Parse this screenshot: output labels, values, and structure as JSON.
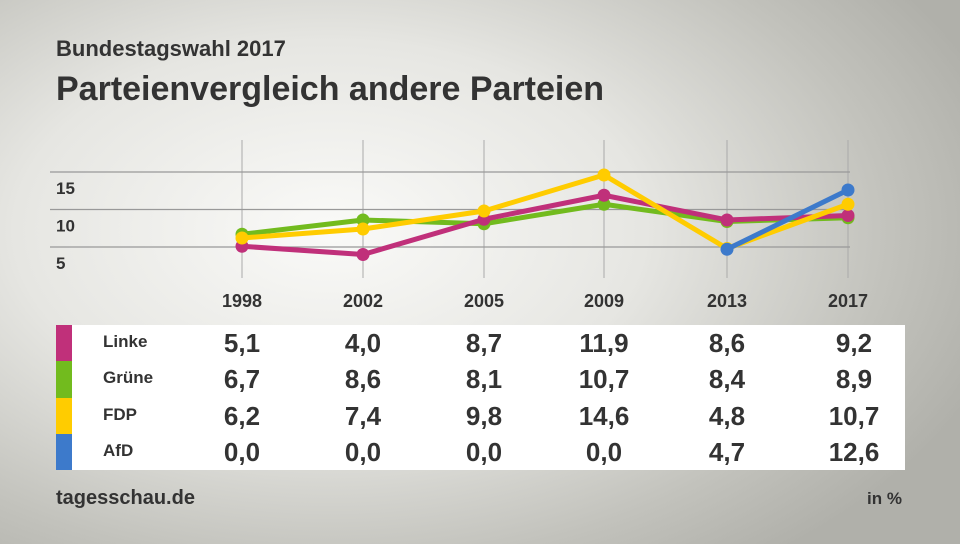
{
  "header": {
    "subtitle": "Bundestagswahl 2017",
    "title": "Parteienvergleich andere Parteien"
  },
  "footer": {
    "source": "tagesschau.de",
    "unit": "in %"
  },
  "chart_data": {
    "type": "line",
    "categories": [
      "1998",
      "2002",
      "2005",
      "2009",
      "2013",
      "2017"
    ],
    "y_ticks": [
      "5",
      "10",
      "15"
    ],
    "grid": true,
    "series": [
      {
        "name": "Linke",
        "color": "#c0307a",
        "values": [
          5.1,
          4.0,
          8.7,
          11.9,
          8.6,
          9.2
        ],
        "labels": [
          "5,1",
          "4,0",
          "8,7",
          "11,9",
          "8,6",
          "9,2"
        ],
        "plotted": [
          true,
          true,
          true,
          true,
          true,
          true
        ]
      },
      {
        "name": "Grüne",
        "color": "#72bb1e",
        "values": [
          6.7,
          8.6,
          8.1,
          10.7,
          8.4,
          8.9
        ],
        "labels": [
          "6,7",
          "8,6",
          "8,1",
          "10,7",
          "8,4",
          "8,9"
        ],
        "plotted": [
          true,
          true,
          true,
          true,
          true,
          true
        ]
      },
      {
        "name": "FDP",
        "color": "#ffcc00",
        "values": [
          6.2,
          7.4,
          9.8,
          14.6,
          4.8,
          10.7
        ],
        "labels": [
          "6,2",
          "7,4",
          "9,8",
          "14,6",
          "4,8",
          "10,7"
        ],
        "plotted": [
          true,
          true,
          true,
          true,
          true,
          true
        ]
      },
      {
        "name": "AfD",
        "color": "#3d7acb",
        "values": [
          0.0,
          0.0,
          0.0,
          0.0,
          4.7,
          12.6
        ],
        "labels": [
          "0,0",
          "0,0",
          "0,0",
          "0,0",
          "4,7",
          "12,6"
        ],
        "plotted": [
          false,
          false,
          false,
          false,
          true,
          true
        ]
      }
    ]
  }
}
